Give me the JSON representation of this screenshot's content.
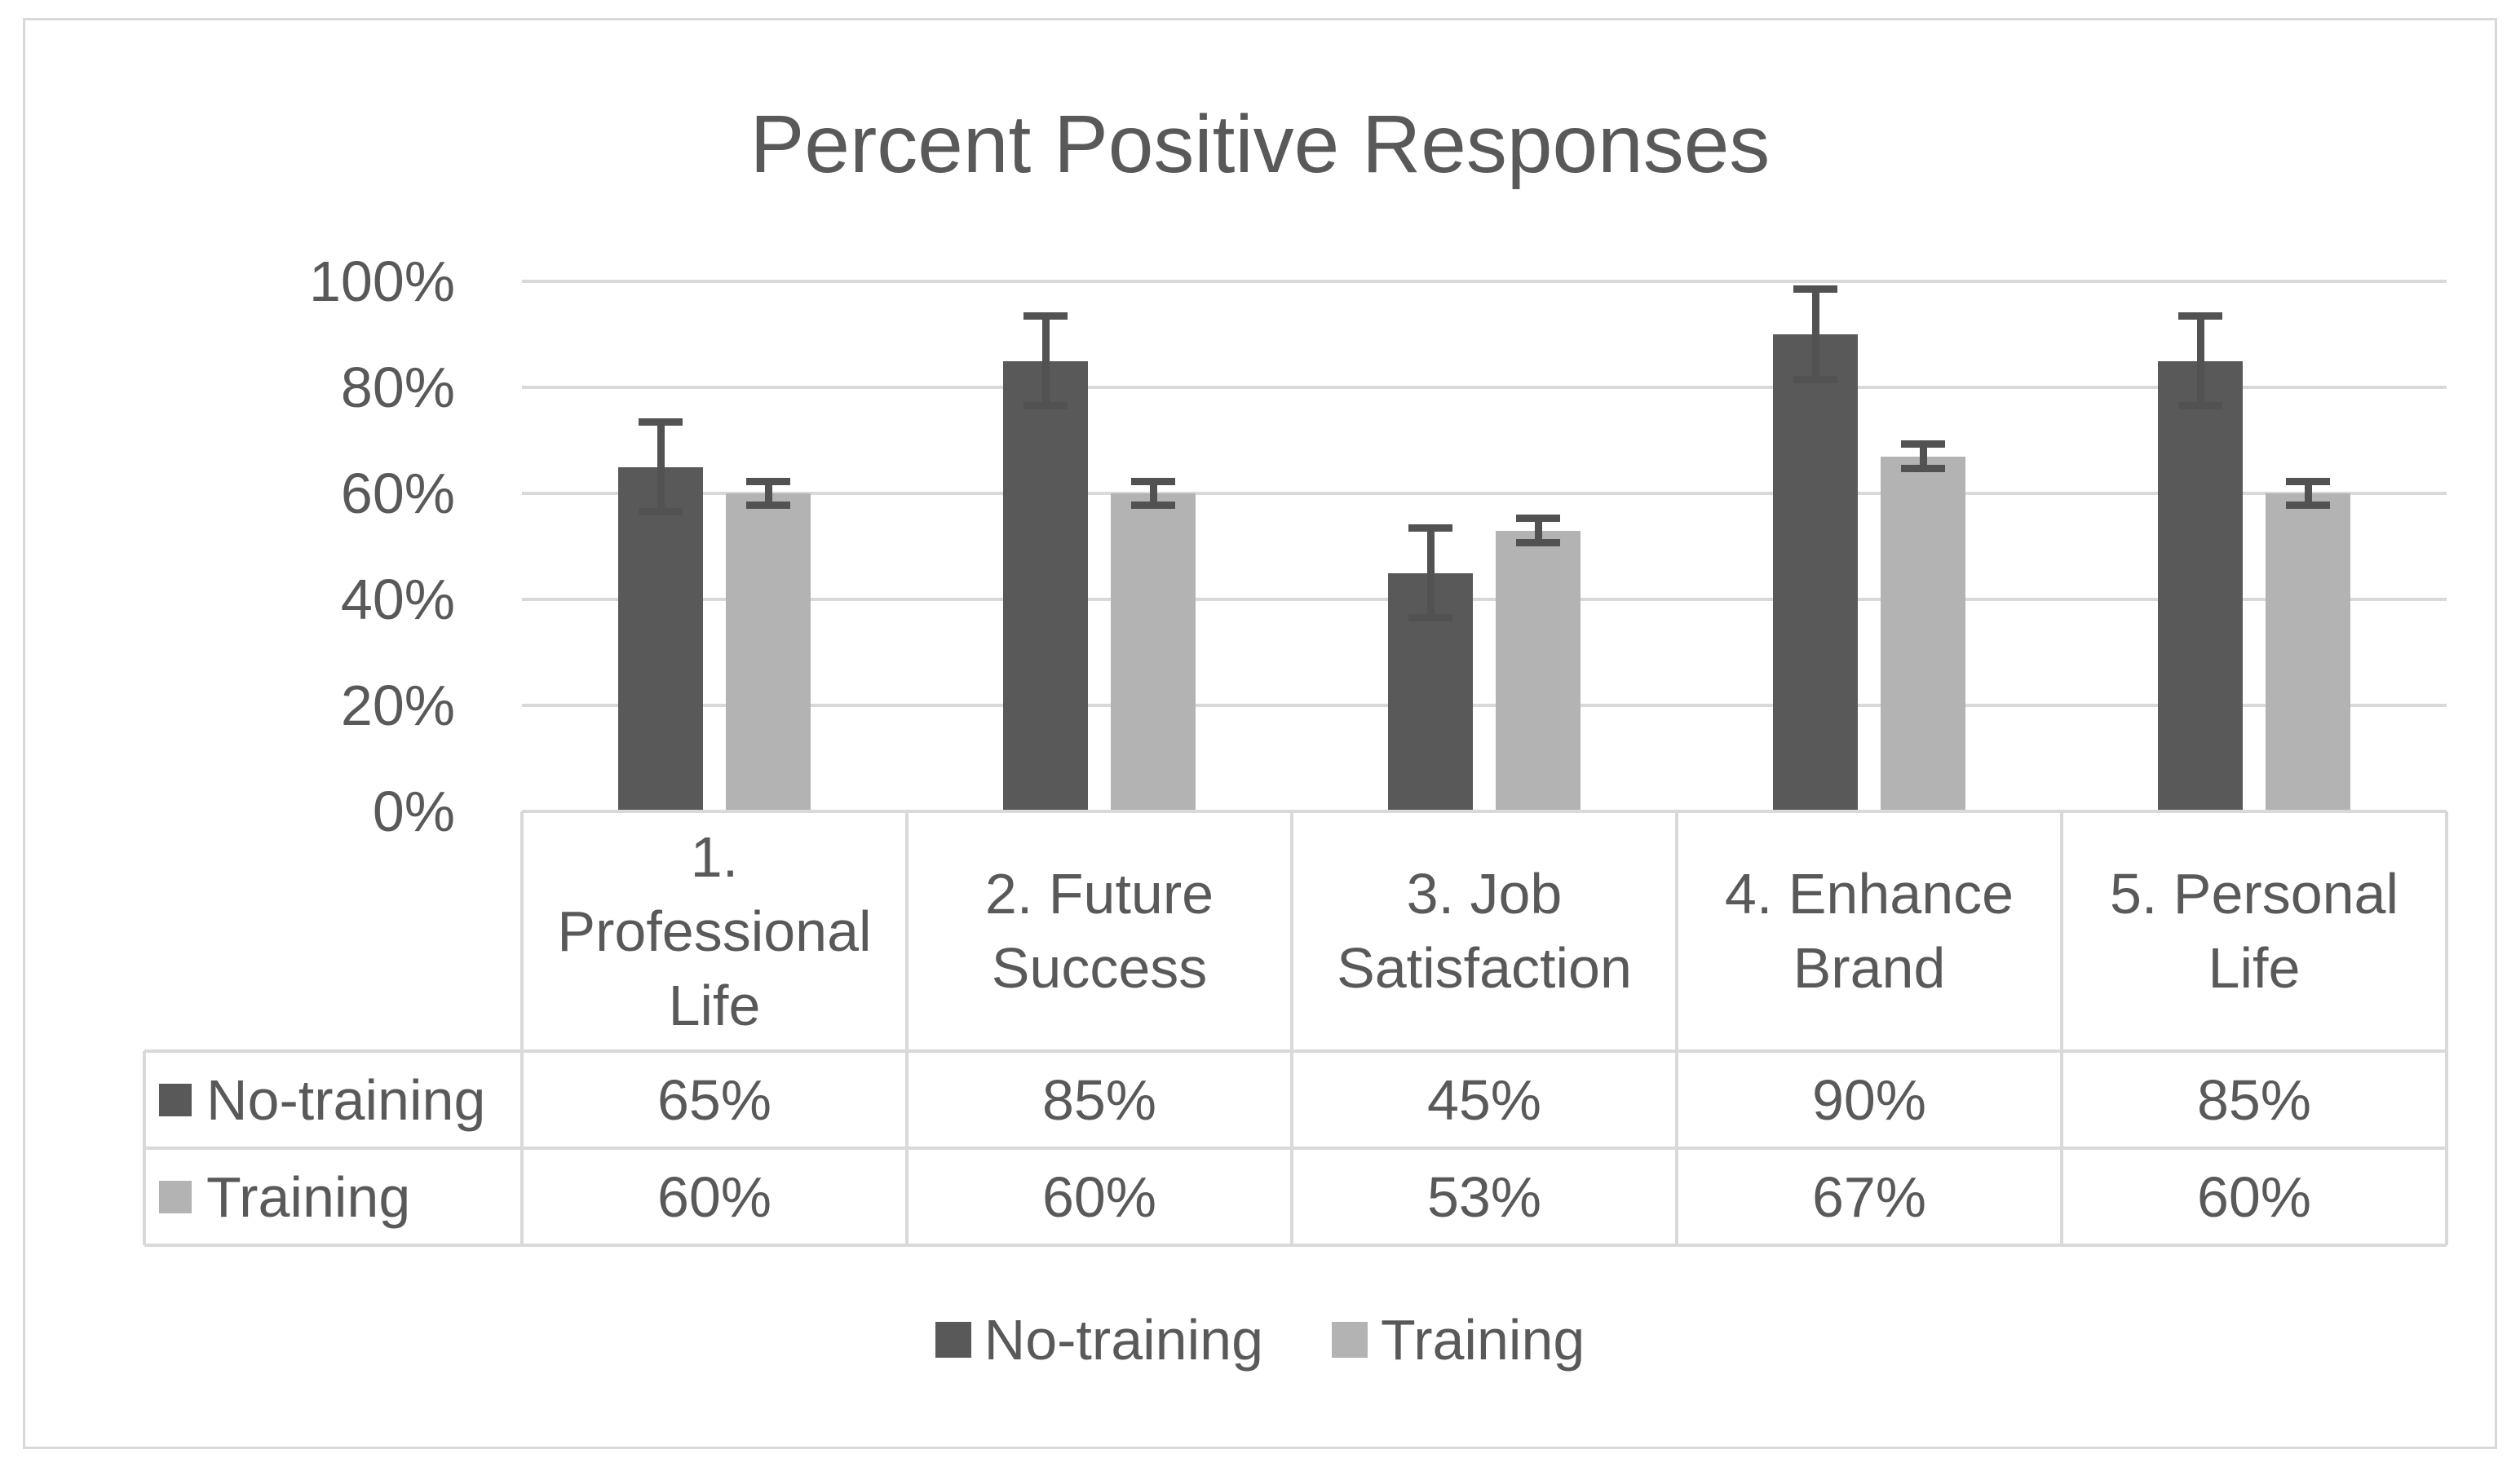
{
  "colors": {
    "background": "#ffffff",
    "chart_border": "#d9d9d9",
    "gridline": "#d9d9d9",
    "table_border": "#d9d9d9",
    "text": "#595959",
    "error_bar": "#525252",
    "series_no_training": "#595959",
    "series_training": "#b3b3b3"
  },
  "chart_data": {
    "type": "bar",
    "title": "Percent Positive Responses",
    "categories": [
      "1. Professional Life",
      "2. Future Success",
      "3. Job Satisfaction",
      "4. Enhance Brand",
      "5. Personal Life"
    ],
    "category_lines": [
      [
        "1.",
        "Professional",
        "Life"
      ],
      [
        "2. Future",
        "Success"
      ],
      [
        "3. Job",
        "Satisfaction"
      ],
      [
        "4. Enhance",
        "Brand"
      ],
      [
        "5. Personal",
        "Life"
      ]
    ],
    "series": [
      {
        "name": "No-training",
        "color": "#595959",
        "values": [
          65,
          85,
          45,
          90,
          85
        ],
        "display_values": [
          "65%",
          "85%",
          "45%",
          "90%",
          "85%"
        ],
        "error": 8.5
      },
      {
        "name": "Training",
        "color": "#b3b3b3",
        "values": [
          60,
          60,
          53,
          67,
          60
        ],
        "display_values": [
          "60%",
          "60%",
          "53%",
          "67%",
          "60%"
        ],
        "error": 2.3
      }
    ],
    "y_axis": {
      "min": 0,
      "max": 100,
      "ticks": [
        {
          "value": 100,
          "label": "100%"
        },
        {
          "value": 80,
          "label": "80%"
        },
        {
          "value": 60,
          "label": "60%"
        },
        {
          "value": 40,
          "label": "40%"
        },
        {
          "value": 20,
          "label": "20%"
        },
        {
          "value": 0,
          "label": "0%"
        }
      ]
    },
    "grid": true,
    "error_bars": true,
    "data_table": true,
    "legend_position": "bottom",
    "xlabel": "",
    "ylabel": ""
  }
}
